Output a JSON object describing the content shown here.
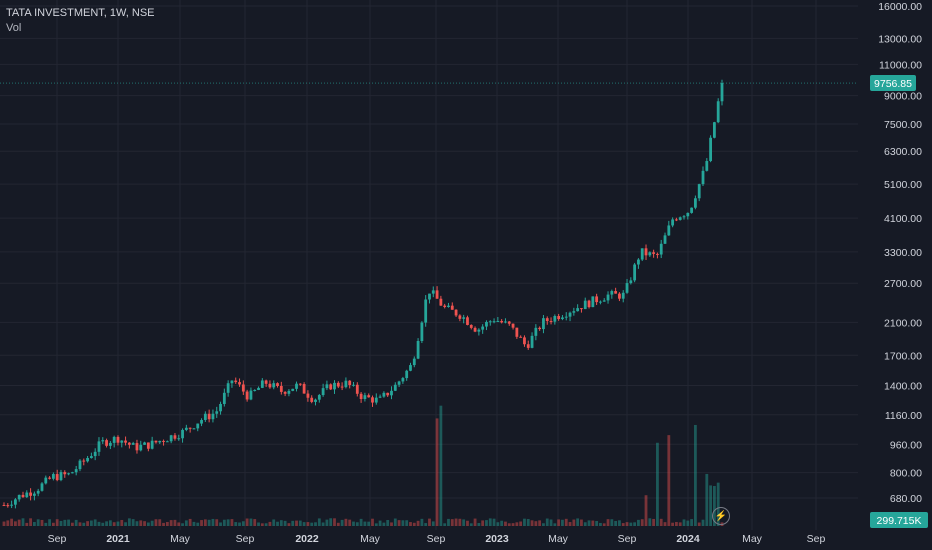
{
  "legend": {
    "symbol_line": "TATA INVESTMENT, 1W, NSE",
    "vol_label": "Vol"
  },
  "price_axis": {
    "scale": "log",
    "ticks": [
      "16000.00",
      "13000.00",
      "11000.00",
      "9000.00",
      "7500.00",
      "6300.00",
      "5100.00",
      "4100.00",
      "3300.00",
      "2700.00",
      "2100.00",
      "1700.00",
      "1400.00",
      "1160.00",
      "960.00",
      "800.00",
      "680.00"
    ],
    "last_price_label": "9756.85",
    "volume_label": "299.715K"
  },
  "time_axis": {
    "ticks": [
      "Sep",
      "2021",
      "May",
      "Sep",
      "2022",
      "May",
      "Sep",
      "2023",
      "May",
      "Sep",
      "2024",
      "May",
      "Sep"
    ]
  },
  "colors": {
    "background": "#161a25",
    "up": "#26a69a",
    "down": "#ef5350",
    "grid": "#232632"
  },
  "icons": {
    "bolt": "lightning-icon"
  },
  "chart_data": {
    "type": "candlestick",
    "title": "TATA INVESTMENT, 1W, NSE",
    "interval": "1W",
    "y_scale": "log",
    "ylim": [
      620,
      16500
    ],
    "last_price": 9756.85,
    "last_volume": "299.715K",
    "series": [
      {
        "name": "price_points",
        "values": [
          {
            "x": "2020-07",
            "close": 650
          },
          {
            "x": "2020-08",
            "close": 690
          },
          {
            "x": "2020-09",
            "close": 720
          },
          {
            "x": "2020-10",
            "close": 780
          },
          {
            "x": "2020-11",
            "close": 790
          },
          {
            "x": "2020-12",
            "close": 870
          },
          {
            "x": "2021-01",
            "close": 970
          },
          {
            "x": "2021-02",
            "close": 1000
          },
          {
            "x": "2021-03",
            "close": 940
          },
          {
            "x": "2021-04",
            "close": 960
          },
          {
            "x": "2021-05",
            "close": 1000
          },
          {
            "x": "2021-06",
            "close": 1040
          },
          {
            "x": "2021-07",
            "close": 1120
          },
          {
            "x": "2021-08",
            "close": 1180
          },
          {
            "x": "2021-09",
            "close": 1460
          },
          {
            "x": "2021-10",
            "close": 1300
          },
          {
            "x": "2021-11",
            "close": 1430
          },
          {
            "x": "2021-12",
            "close": 1350
          },
          {
            "x": "2022-01",
            "close": 1400
          },
          {
            "x": "2022-02",
            "close": 1280
          },
          {
            "x": "2022-03",
            "close": 1400
          },
          {
            "x": "2022-04",
            "close": 1420
          },
          {
            "x": "2022-05",
            "close": 1300
          },
          {
            "x": "2022-06",
            "close": 1270
          },
          {
            "x": "2022-07",
            "close": 1400
          },
          {
            "x": "2022-08",
            "close": 1600
          },
          {
            "x": "2022-09",
            "close": 2600
          },
          {
            "x": "2022-10",
            "close": 2300
          },
          {
            "x": "2022-11",
            "close": 2200
          },
          {
            "x": "2022-12",
            "close": 2000
          },
          {
            "x": "2023-01",
            "close": 2150
          },
          {
            "x": "2023-02",
            "close": 2050
          },
          {
            "x": "2023-03",
            "close": 1800
          },
          {
            "x": "2023-04",
            "close": 2100
          },
          {
            "x": "2023-05",
            "close": 2200
          },
          {
            "x": "2023-06",
            "close": 2300
          },
          {
            "x": "2023-07",
            "close": 2400
          },
          {
            "x": "2023-08",
            "close": 2500
          },
          {
            "x": "2023-09",
            "close": 2500
          },
          {
            "x": "2023-10",
            "close": 3300
          },
          {
            "x": "2023-11",
            "close": 3200
          },
          {
            "x": "2023-12",
            "close": 4100
          },
          {
            "x": "2024-01",
            "close": 4300
          },
          {
            "x": "2024-02",
            "close": 5700
          },
          {
            "x": "2024-03",
            "close": 9756.85
          }
        ]
      }
    ],
    "volume_spikes": [
      {
        "x": "2021-08",
        "rel": 0.28
      },
      {
        "x": "2022-09",
        "rel": 1.0
      },
      {
        "x": "2023-10",
        "rel": 0.28
      },
      {
        "x": "2023-11",
        "rel": 0.75
      },
      {
        "x": "2024-01",
        "rel": 0.92
      },
      {
        "x": "2024-02",
        "rel": 0.42
      }
    ]
  }
}
